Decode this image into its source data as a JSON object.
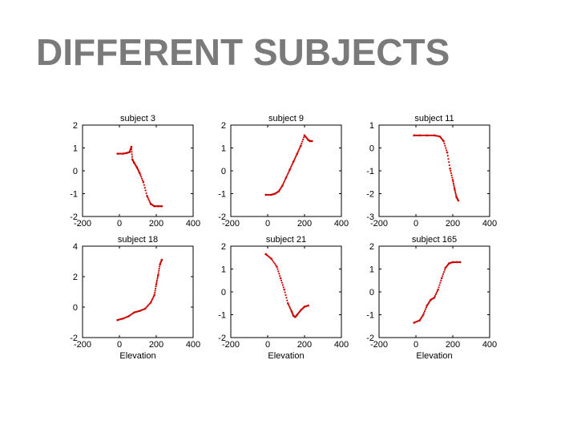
{
  "slide": {
    "title": "DIFFERENT SUBJECTS"
  },
  "colors": {
    "title": "#7a7a7a",
    "data": "#cc0000",
    "axes": "#000000"
  },
  "chart_data": [
    {
      "type": "scatter",
      "title": "subject 3",
      "xlabel": "",
      "ylabel": "",
      "xlim": [
        -200,
        400
      ],
      "ylim": [
        -2,
        2
      ],
      "xticks": [
        "-200",
        "0",
        "200",
        "400"
      ],
      "yticks": [
        "-2",
        "-1",
        "0",
        "1",
        "2"
      ],
      "series": [
        {
          "x": [
            -10,
            20,
            40,
            55,
            65,
            70,
            80,
            95,
            110,
            130,
            150,
            170,
            190,
            210,
            230
          ],
          "y": [
            0.75,
            0.75,
            0.78,
            0.82,
            1.05,
            0.5,
            0.35,
            0.15,
            -0.1,
            -0.5,
            -1.1,
            -1.45,
            -1.55,
            -1.55,
            -1.55
          ]
        }
      ]
    },
    {
      "type": "scatter",
      "title": "subject 9",
      "xlabel": "",
      "ylabel": "",
      "xlim": [
        -200,
        400
      ],
      "ylim": [
        -2,
        2
      ],
      "xticks": [
        "-200",
        "0",
        "200",
        "400"
      ],
      "yticks": [
        "-2",
        "-1",
        "0",
        "1",
        "2"
      ],
      "series": [
        {
          "x": [
            -10,
            20,
            40,
            60,
            80,
            100,
            120,
            140,
            160,
            180,
            200,
            220,
            230,
            240
          ],
          "y": [
            -1.05,
            -1.05,
            -1.0,
            -0.9,
            -0.65,
            -0.3,
            0.05,
            0.4,
            0.75,
            1.1,
            1.55,
            1.35,
            1.3,
            1.3
          ]
        }
      ]
    },
    {
      "type": "scatter",
      "title": "subject 11",
      "xlabel": "",
      "ylabel": "",
      "xlim": [
        -200,
        400
      ],
      "ylim": [
        -3,
        1
      ],
      "xticks": [
        "-200",
        "0",
        "200",
        "400"
      ],
      "yticks": [
        "-3",
        "-2",
        "-1",
        "0",
        "1"
      ],
      "series": [
        {
          "x": [
            -10,
            20,
            60,
            100,
            130,
            150,
            170,
            185,
            200,
            210,
            220,
            230
          ],
          "y": [
            0.55,
            0.55,
            0.55,
            0.55,
            0.5,
            0.3,
            -0.2,
            -0.9,
            -1.4,
            -1.8,
            -2.15,
            -2.3
          ]
        }
      ]
    },
    {
      "type": "scatter",
      "title": "subject 18",
      "xlabel": "Elevation",
      "ylabel": "",
      "xlim": [
        -200,
        400
      ],
      "ylim": [
        -2,
        4
      ],
      "xticks": [
        "-200",
        "0",
        "200",
        "400"
      ],
      "yticks": [
        "-2",
        "0",
        "2",
        "4"
      ],
      "series": [
        {
          "x": [
            -10,
            20,
            50,
            80,
            110,
            140,
            170,
            190,
            200,
            210,
            220,
            230
          ],
          "y": [
            -0.85,
            -0.75,
            -0.6,
            -0.35,
            -0.25,
            -0.1,
            0.3,
            0.8,
            1.5,
            2.1,
            2.8,
            3.1
          ]
        }
      ]
    },
    {
      "type": "scatter",
      "title": "subject 21",
      "xlabel": "Elevation",
      "ylabel": "",
      "xlim": [
        -200,
        400
      ],
      "ylim": [
        -2,
        2
      ],
      "xticks": [
        "-200",
        "0",
        "200",
        "400"
      ],
      "yticks": [
        "-2",
        "-1",
        "0",
        "1",
        "2"
      ],
      "series": [
        {
          "x": [
            -10,
            20,
            50,
            70,
            90,
            110,
            130,
            140,
            150,
            160,
            180,
            200,
            220
          ],
          "y": [
            1.65,
            1.45,
            1.1,
            0.6,
            0.1,
            -0.5,
            -0.85,
            -1.05,
            -1.1,
            -1.0,
            -0.8,
            -0.65,
            -0.6
          ]
        }
      ]
    },
    {
      "type": "scatter",
      "title": "subject 165",
      "xlabel": "Elevation",
      "ylabel": "",
      "xlim": [
        -200,
        400
      ],
      "ylim": [
        -2,
        2
      ],
      "xticks": [
        "-200",
        "0",
        "200",
        "400"
      ],
      "yticks": [
        "-2",
        "-1",
        "0",
        "1",
        "2"
      ],
      "series": [
        {
          "x": [
            -10,
            20,
            40,
            60,
            80,
            100,
            120,
            140,
            160,
            180,
            200,
            220,
            240
          ],
          "y": [
            -1.35,
            -1.25,
            -1.0,
            -0.6,
            -0.35,
            -0.25,
            0.1,
            0.6,
            1.05,
            1.25,
            1.3,
            1.3,
            1.3
          ]
        }
      ]
    }
  ]
}
